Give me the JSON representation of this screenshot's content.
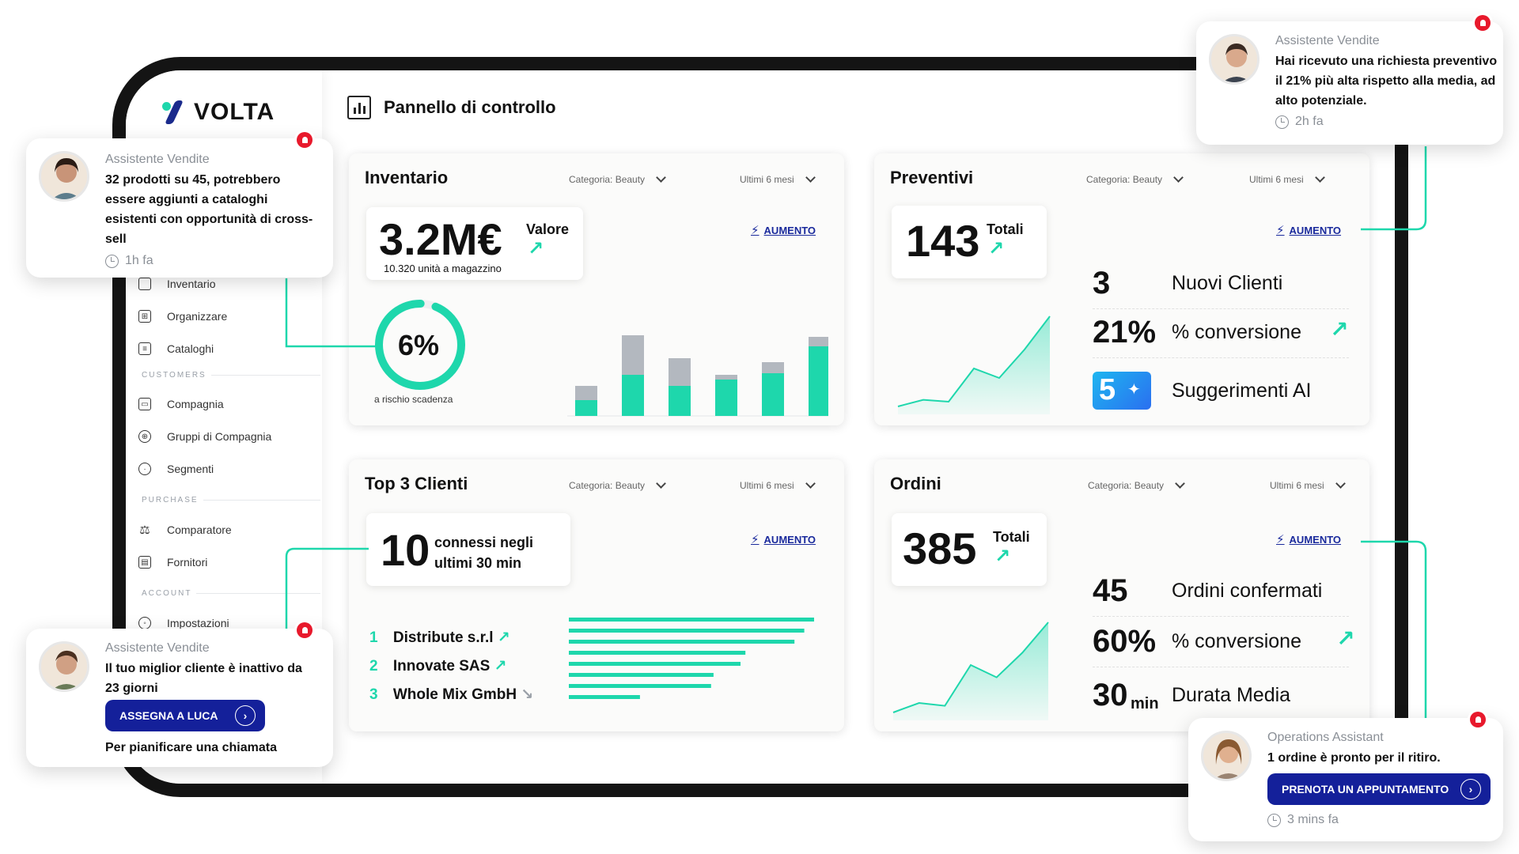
{
  "brand": {
    "name": "VOLTA"
  },
  "header": {
    "title": "Pannello di controllo"
  },
  "sidebar": {
    "items": [
      {
        "label": "Inventario",
        "icon": "box-icon"
      },
      {
        "label": "Organizzare",
        "icon": "hierarchy-icon"
      },
      {
        "label": "Cataloghi",
        "icon": "catalog-icon"
      },
      {
        "label": "Compagnia",
        "icon": "building-icon"
      },
      {
        "label": "Gruppi di Compagnia",
        "icon": "group-icon"
      },
      {
        "label": "Segmenti",
        "icon": "target-icon"
      },
      {
        "label": "Comparatore",
        "icon": "scale-icon"
      },
      {
        "label": "Fornitori",
        "icon": "supplier-icon"
      },
      {
        "label": "Impostazioni",
        "icon": "settings-icon"
      }
    ],
    "sections": {
      "customers": "CUSTOMERS",
      "purchase": "PURCHASE",
      "account": "ACCOUNT"
    }
  },
  "filters": {
    "category": "Categoria: Beauty",
    "period": "Ultimi 6 mesi"
  },
  "aumento_label": "AUMENTO",
  "inventario": {
    "title": "Inventario",
    "value": "3.2M€",
    "value_label": "Valore",
    "units": "10.320 unità a magazzino",
    "risk_pct": "6%",
    "risk_fraction": 0.94,
    "risk_label": "a rischio scadenza"
  },
  "preventivi": {
    "title": "Preventivi",
    "total": "143",
    "total_label": "Totali",
    "rows": [
      {
        "num": "3",
        "label": "Nuovi Clienti"
      },
      {
        "num": "21%",
        "label": "% conversione"
      },
      {
        "num": "5",
        "label": "Suggerimenti AI"
      }
    ]
  },
  "top_clienti": {
    "title": "Top 3 Clienti",
    "connected": "10",
    "connected_label_1": "connessi negli",
    "connected_label_2": "ultimi 30 min",
    "clients": [
      {
        "rank": "1",
        "name": "Distribute s.r.l"
      },
      {
        "rank": "2",
        "name": "Innovate SAS"
      },
      {
        "rank": "3",
        "name": "Whole Mix GmbH"
      }
    ]
  },
  "ordini": {
    "title": "Ordini",
    "total": "385",
    "total_label": "Totali",
    "rows": [
      {
        "num": "45",
        "label": "Ordini confermati"
      },
      {
        "num": "60%",
        "label": "% conversione"
      },
      {
        "num": "30",
        "unit": "min",
        "label": "Durata Media"
      }
    ]
  },
  "chart_data": [
    {
      "type": "bar",
      "stacked": true,
      "categories": [
        "1",
        "2",
        "3",
        "4",
        "5",
        "6"
      ],
      "series": [
        {
          "values": [
            20,
            52,
            38,
            46,
            54,
            88
          ],
          "color": "#1ed7ac"
        },
        {
          "values": [
            18,
            50,
            35,
            6,
            14,
            12
          ],
          "color": "#b3b8bf"
        }
      ]
    },
    {
      "type": "area",
      "x": [
        1,
        2,
        3,
        4,
        5,
        6,
        7
      ],
      "values": [
        5,
        12,
        10,
        45,
        35,
        65,
        100
      ],
      "color": "#1ed7ac"
    },
    {
      "type": "bar",
      "orientation": "horizontal",
      "values": [
        100,
        96,
        92,
        72,
        70,
        59,
        58,
        29
      ],
      "color": "#1ed7ac"
    },
    {
      "type": "area",
      "x": [
        1,
        2,
        3,
        4,
        5,
        6,
        7
      ],
      "values": [
        5,
        15,
        12,
        55,
        42,
        68,
        100
      ],
      "color": "#1ed7ac"
    }
  ],
  "notifications": [
    {
      "who": "Assistente Vendite",
      "message": "32 prodotti su 45, potrebbero essere aggiunti a cataloghi esistenti con opportunità di cross-sell",
      "time": "1h fa"
    },
    {
      "who": "Assistente Vendite",
      "message": "Hai ricevuto una richiesta preventivo il 21% più alta rispetto alla media, ad alto potenziale.",
      "time": "2h fa"
    },
    {
      "who": "Assistente Vendite",
      "message": "Il tuo miglior cliente è inattivo da 23 giorni",
      "cta": "ASSEGNA A LUCA",
      "sub": "Per pianificare una chiamata"
    },
    {
      "who": "Operations Assistant",
      "message": "1 ordine è pronto per il ritiro.",
      "cta": "PRENOTA UN APPUNTAMENTO",
      "time": "3 mins fa"
    }
  ]
}
